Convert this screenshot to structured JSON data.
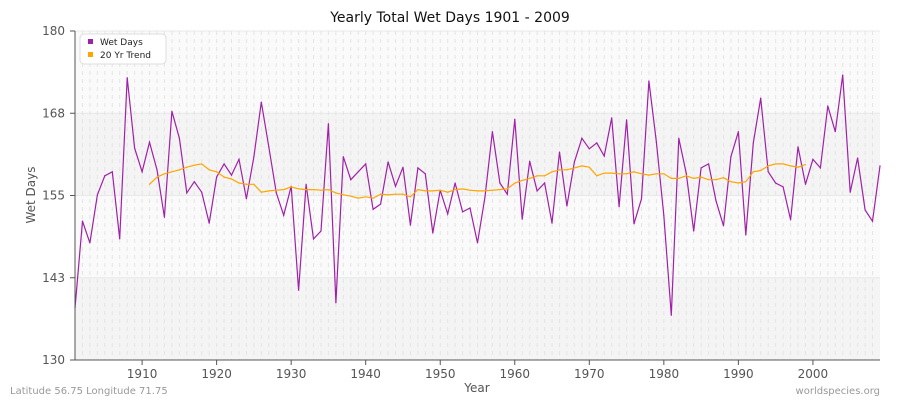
{
  "chart_data": {
    "type": "line",
    "title": "Yearly Total Wet Days 1901 - 2009",
    "xlabel": "Year",
    "ylabel": "Wet Days",
    "xlim": [
      1901,
      2009
    ],
    "ylim": [
      130,
      180
    ],
    "xticks": [
      1910,
      1920,
      1930,
      1940,
      1950,
      1960,
      1970,
      1980,
      1990,
      2000
    ],
    "yticks": [
      {
        "value": 130,
        "label": "130"
      },
      {
        "value": 142.5,
        "label": "143"
      },
      {
        "value": 155,
        "label": "155"
      },
      {
        "value": 167.5,
        "label": "168"
      },
      {
        "value": 180,
        "label": "180"
      }
    ],
    "grid": true,
    "legend_position": "top-left",
    "series": [
      {
        "name": "Wet Days",
        "color": "#a020a8",
        "x_start": 1901,
        "values": [
          137.9,
          151.1,
          147.8,
          155.1,
          158.0,
          158.6,
          148.4,
          172.9,
          162.2,
          158.6,
          163.1,
          158.9,
          151.7,
          167.8,
          163.7,
          155.4,
          157.1,
          155.5,
          150.8,
          157.8,
          159.8,
          158.1,
          160.5,
          154.5,
          160.9,
          169.2,
          162.4,
          155.4,
          152.0,
          156.4,
          140.6,
          156.7,
          148.4,
          149.6,
          165.9,
          138.7,
          160.9,
          157.4,
          158.6,
          159.8,
          152.9,
          153.7,
          160.1,
          156.4,
          159.3,
          150.5,
          159.2,
          158.3,
          149.3,
          155.8,
          152.2,
          156.9,
          152.5,
          153.1,
          147.8,
          154.8,
          164.7,
          156.9,
          155.2,
          166.6,
          151.4,
          160.2,
          155.7,
          156.9,
          150.8,
          161.6,
          153.4,
          160.1,
          163.7,
          162.1,
          163.0,
          161.0,
          166.8,
          153.3,
          166.5,
          150.7,
          154.5,
          172.4,
          163.1,
          152.0,
          136.8,
          163.7,
          158.4,
          149.6,
          159.2,
          159.8,
          154.2,
          150.4,
          160.9,
          164.7,
          149.0,
          163.0,
          169.8,
          158.6,
          156.9,
          156.3,
          151.3,
          162.4,
          156.7,
          160.5,
          159.2,
          168.6,
          164.7,
          173.3,
          155.5,
          160.7,
          152.8,
          151.1,
          159.5
        ]
      },
      {
        "name": "20 Yr Trend",
        "color": "#ffa500",
        "x_start": 1911,
        "values": [
          156.7,
          157.8,
          158.3,
          158.6,
          158.9,
          159.3,
          159.6,
          159.8,
          158.9,
          158.6,
          157.8,
          157.5,
          156.9,
          156.7,
          156.7,
          155.5,
          155.7,
          155.8,
          155.9,
          156.3,
          156.0,
          155.9,
          155.9,
          155.8,
          155.9,
          155.4,
          155.1,
          154.9,
          154.6,
          154.8,
          154.6,
          155.2,
          155.1,
          155.2,
          155.2,
          154.8,
          155.9,
          155.7,
          155.7,
          155.8,
          155.5,
          155.9,
          156.0,
          155.8,
          155.7,
          155.7,
          155.8,
          155.9,
          156.0,
          156.9,
          157.3,
          157.6,
          158.0,
          158.0,
          158.6,
          158.9,
          158.9,
          159.2,
          159.5,
          159.3,
          158.0,
          158.4,
          158.4,
          158.3,
          158.3,
          158.6,
          158.3,
          158.1,
          158.3,
          158.3,
          157.6,
          157.6,
          158.0,
          157.6,
          157.8,
          157.4,
          157.4,
          157.7,
          157.1,
          156.9,
          157.1,
          158.6,
          158.8,
          159.5,
          159.8,
          159.8,
          159.5,
          159.3,
          159.7
        ]
      }
    ]
  },
  "footer": {
    "left": "Latitude 56.75 Longitude 71.75",
    "right": "worldspecies.org"
  }
}
